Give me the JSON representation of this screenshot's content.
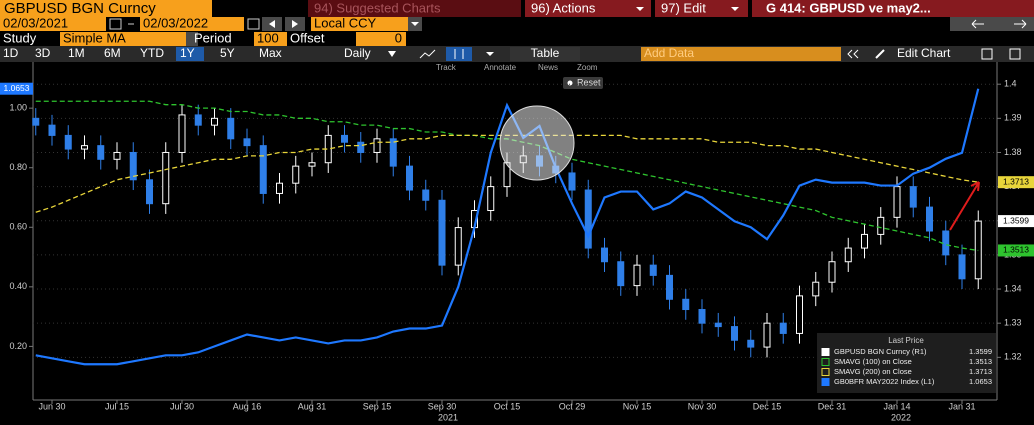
{
  "header": {
    "security": "GBPUSD BGN Curncy",
    "suggested": "94) Suggested Charts",
    "actions": "96) Actions",
    "edit": "97) Edit",
    "chart_name": "G 414: GBPUSD ve may2...",
    "start_date": "02/03/2021",
    "end_date": "02/03/2022",
    "currency": "Local CCY",
    "study_label": "Study",
    "study": "Simple MA",
    "period_label": "Period",
    "period": "100",
    "offset_label": "Offset",
    "offset": "0"
  },
  "toolbar": {
    "period_buttons": [
      "1D",
      "3D",
      "1M",
      "6M",
      "YTD",
      "1Y",
      "5Y",
      "Max"
    ],
    "frequency": "Daily",
    "table": "Table",
    "add_data": "Add Data",
    "edit_chart": "Edit Chart",
    "chart_tools": [
      "Track",
      "Annotate",
      "News",
      "Zoom"
    ],
    "reset": "Reset"
  },
  "chart_data": {
    "type": "candlestick",
    "categories": [
      null,
      "Jun 30",
      null,
      null,
      null,
      "Jul 15",
      null,
      null,
      null,
      "Jul 30",
      null,
      null,
      null,
      "Aug 16",
      null,
      null,
      null,
      "Aug 31",
      null,
      null,
      null,
      "Sep 15",
      null,
      null,
      null,
      "Sep 30",
      null,
      null,
      null,
      "Oct 15",
      null,
      null,
      null,
      "Oct 29",
      null,
      null,
      null,
      "Nov 15",
      null,
      null,
      null,
      "Nov 30",
      null,
      null,
      null,
      "Dec 15",
      null,
      null,
      null,
      "Dec 31",
      null,
      null,
      null,
      "Jan 14",
      null,
      null,
      null,
      "Jan 31",
      null
    ],
    "year_labels": [
      "2021",
      "2022"
    ],
    "legend_title": "Last Price",
    "series": [
      {
        "name": "GBPUSD BGN Curncy  (R1)",
        "type": "candlestick",
        "axis": "y2",
        "up_color": "#ffffff",
        "down_color": "#2f7fe8",
        "open": [
          1.39,
          1.388,
          1.385,
          1.381,
          1.382,
          1.378,
          1.38,
          1.372,
          1.365,
          1.38,
          1.391,
          1.388,
          1.39,
          1.384,
          1.382,
          1.368,
          1.371,
          1.376,
          1.377,
          1.385,
          1.383,
          1.38,
          1.384,
          1.376,
          1.369,
          1.366,
          1.347,
          1.358,
          1.363,
          1.37,
          1.377,
          1.379,
          1.376,
          1.374,
          1.369,
          1.352,
          1.348,
          1.341,
          1.347,
          1.344,
          1.337,
          1.334,
          1.33,
          1.329,
          1.325,
          1.323,
          1.33,
          1.327,
          1.338,
          1.342,
          1.348,
          1.352,
          1.356,
          1.361,
          1.37,
          1.364,
          1.357,
          1.35,
          1.343
        ],
        "high": [
          1.393,
          1.391,
          1.388,
          1.385,
          1.385,
          1.383,
          1.383,
          1.375,
          1.383,
          1.394,
          1.394,
          1.393,
          1.393,
          1.387,
          1.385,
          1.374,
          1.379,
          1.38,
          1.388,
          1.388,
          1.386,
          1.387,
          1.387,
          1.379,
          1.372,
          1.369,
          1.361,
          1.366,
          1.373,
          1.38,
          1.382,
          1.382,
          1.379,
          1.377,
          1.372,
          1.355,
          1.351,
          1.35,
          1.35,
          1.347,
          1.34,
          1.337,
          1.333,
          1.332,
          1.328,
          1.333,
          1.333,
          1.341,
          1.345,
          1.351,
          1.355,
          1.359,
          1.364,
          1.373,
          1.373,
          1.367,
          1.36,
          1.353,
          1.363
        ],
        "low": [
          1.385,
          1.382,
          1.378,
          1.378,
          1.375,
          1.375,
          1.369,
          1.362,
          1.362,
          1.377,
          1.385,
          1.385,
          1.381,
          1.379,
          1.365,
          1.365,
          1.368,
          1.373,
          1.374,
          1.38,
          1.377,
          1.377,
          1.373,
          1.366,
          1.363,
          1.344,
          1.344,
          1.355,
          1.36,
          1.367,
          1.374,
          1.373,
          1.371,
          1.366,
          1.349,
          1.345,
          1.338,
          1.338,
          1.341,
          1.334,
          1.331,
          1.327,
          1.326,
          1.322,
          1.32,
          1.32,
          1.324,
          1.324,
          1.335,
          1.339,
          1.345,
          1.349,
          1.353,
          1.358,
          1.361,
          1.354,
          1.347,
          1.34,
          1.34
        ],
        "close": [
          1.388,
          1.385,
          1.381,
          1.382,
          1.378,
          1.38,
          1.372,
          1.365,
          1.38,
          1.391,
          1.388,
          1.39,
          1.384,
          1.382,
          1.368,
          1.371,
          1.376,
          1.377,
          1.385,
          1.383,
          1.38,
          1.384,
          1.376,
          1.369,
          1.366,
          1.347,
          1.358,
          1.363,
          1.37,
          1.377,
          1.379,
          1.376,
          1.374,
          1.369,
          1.352,
          1.348,
          1.341,
          1.347,
          1.344,
          1.337,
          1.334,
          1.33,
          1.329,
          1.325,
          1.323,
          1.33,
          1.327,
          1.338,
          1.342,
          1.348,
          1.352,
          1.356,
          1.361,
          1.37,
          1.364,
          1.357,
          1.35,
          1.343,
          1.3599
        ]
      },
      {
        "name": "SMAVG (100)  on Close",
        "type": "line",
        "axis": "y2",
        "color": "#2ec32e",
        "dashed": true,
        "values": [
          1.395,
          1.395,
          1.395,
          1.395,
          1.395,
          1.395,
          1.395,
          1.395,
          1.394,
          1.394,
          1.393,
          1.393,
          1.392,
          1.392,
          1.391,
          1.391,
          1.39,
          1.39,
          1.389,
          1.389,
          1.388,
          1.388,
          1.387,
          1.387,
          1.386,
          1.386,
          1.385,
          1.385,
          1.384,
          1.384,
          1.383,
          1.382,
          1.38,
          1.378,
          1.377,
          1.376,
          1.375,
          1.374,
          1.373,
          1.372,
          1.371,
          1.37,
          1.369,
          1.368,
          1.367,
          1.366,
          1.365,
          1.364,
          1.363,
          1.361,
          1.36,
          1.359,
          1.358,
          1.357,
          1.356,
          1.355,
          1.353,
          1.352,
          1.3513
        ]
      },
      {
        "name": "SMAVG (200)  on Close",
        "type": "line",
        "axis": "y2",
        "color": "#e8d53a",
        "dashed": true,
        "values": [
          1.3625,
          1.364,
          1.366,
          1.368,
          1.37,
          1.372,
          1.373,
          1.374,
          1.375,
          1.376,
          1.377,
          1.378,
          1.378,
          1.379,
          1.379,
          1.38,
          1.38,
          1.381,
          1.381,
          1.382,
          1.382,
          1.383,
          1.383,
          1.384,
          1.384,
          1.385,
          1.385,
          1.385,
          1.385,
          1.385,
          1.385,
          1.385,
          1.385,
          1.385,
          1.385,
          1.385,
          1.385,
          1.384,
          1.384,
          1.384,
          1.384,
          1.384,
          1.383,
          1.383,
          1.383,
          1.382,
          1.382,
          1.381,
          1.381,
          1.38,
          1.379,
          1.378,
          1.377,
          1.376,
          1.375,
          1.374,
          1.373,
          1.372,
          1.3713
        ]
      },
      {
        "name": "GB0BFR MAY2022 Index  (L1)",
        "type": "line",
        "axis": "y",
        "color": "#1e78ff",
        "dashed": false,
        "values": [
          0.17,
          0.16,
          0.15,
          0.14,
          0.14,
          0.14,
          0.15,
          0.16,
          0.17,
          0.17,
          0.18,
          0.2,
          0.22,
          0.24,
          0.23,
          0.22,
          0.23,
          0.22,
          0.21,
          0.22,
          0.22,
          0.23,
          0.25,
          0.26,
          0.26,
          0.27,
          0.4,
          0.6,
          0.85,
          1.01,
          0.9,
          0.94,
          0.8,
          0.68,
          0.57,
          0.7,
          0.72,
          0.72,
          0.66,
          0.68,
          0.72,
          0.7,
          0.66,
          0.62,
          0.6,
          0.56,
          0.64,
          0.74,
          0.76,
          0.75,
          0.75,
          0.75,
          0.74,
          0.74,
          0.78,
          0.8,
          0.83,
          0.85,
          1.0653
        ]
      }
    ],
    "ylim": [
      0.02,
      1.155
    ],
    "yticks": [
      {
        "value": 0.2,
        "label": "0.20"
      },
      {
        "value": 0.4,
        "label": "0.40"
      },
      {
        "value": 0.6,
        "label": "0.60"
      },
      {
        "value": 0.8,
        "label": "0.80"
      },
      {
        "value": 1.0,
        "label": "1.00"
      }
    ],
    "y2lim": [
      1.3075,
      1.4065
    ],
    "y2ticks": [
      1.32,
      1.33,
      1.34,
      1.35,
      1.36,
      1.37,
      1.38,
      1.39,
      1.4
    ],
    "grid": true
  }
}
